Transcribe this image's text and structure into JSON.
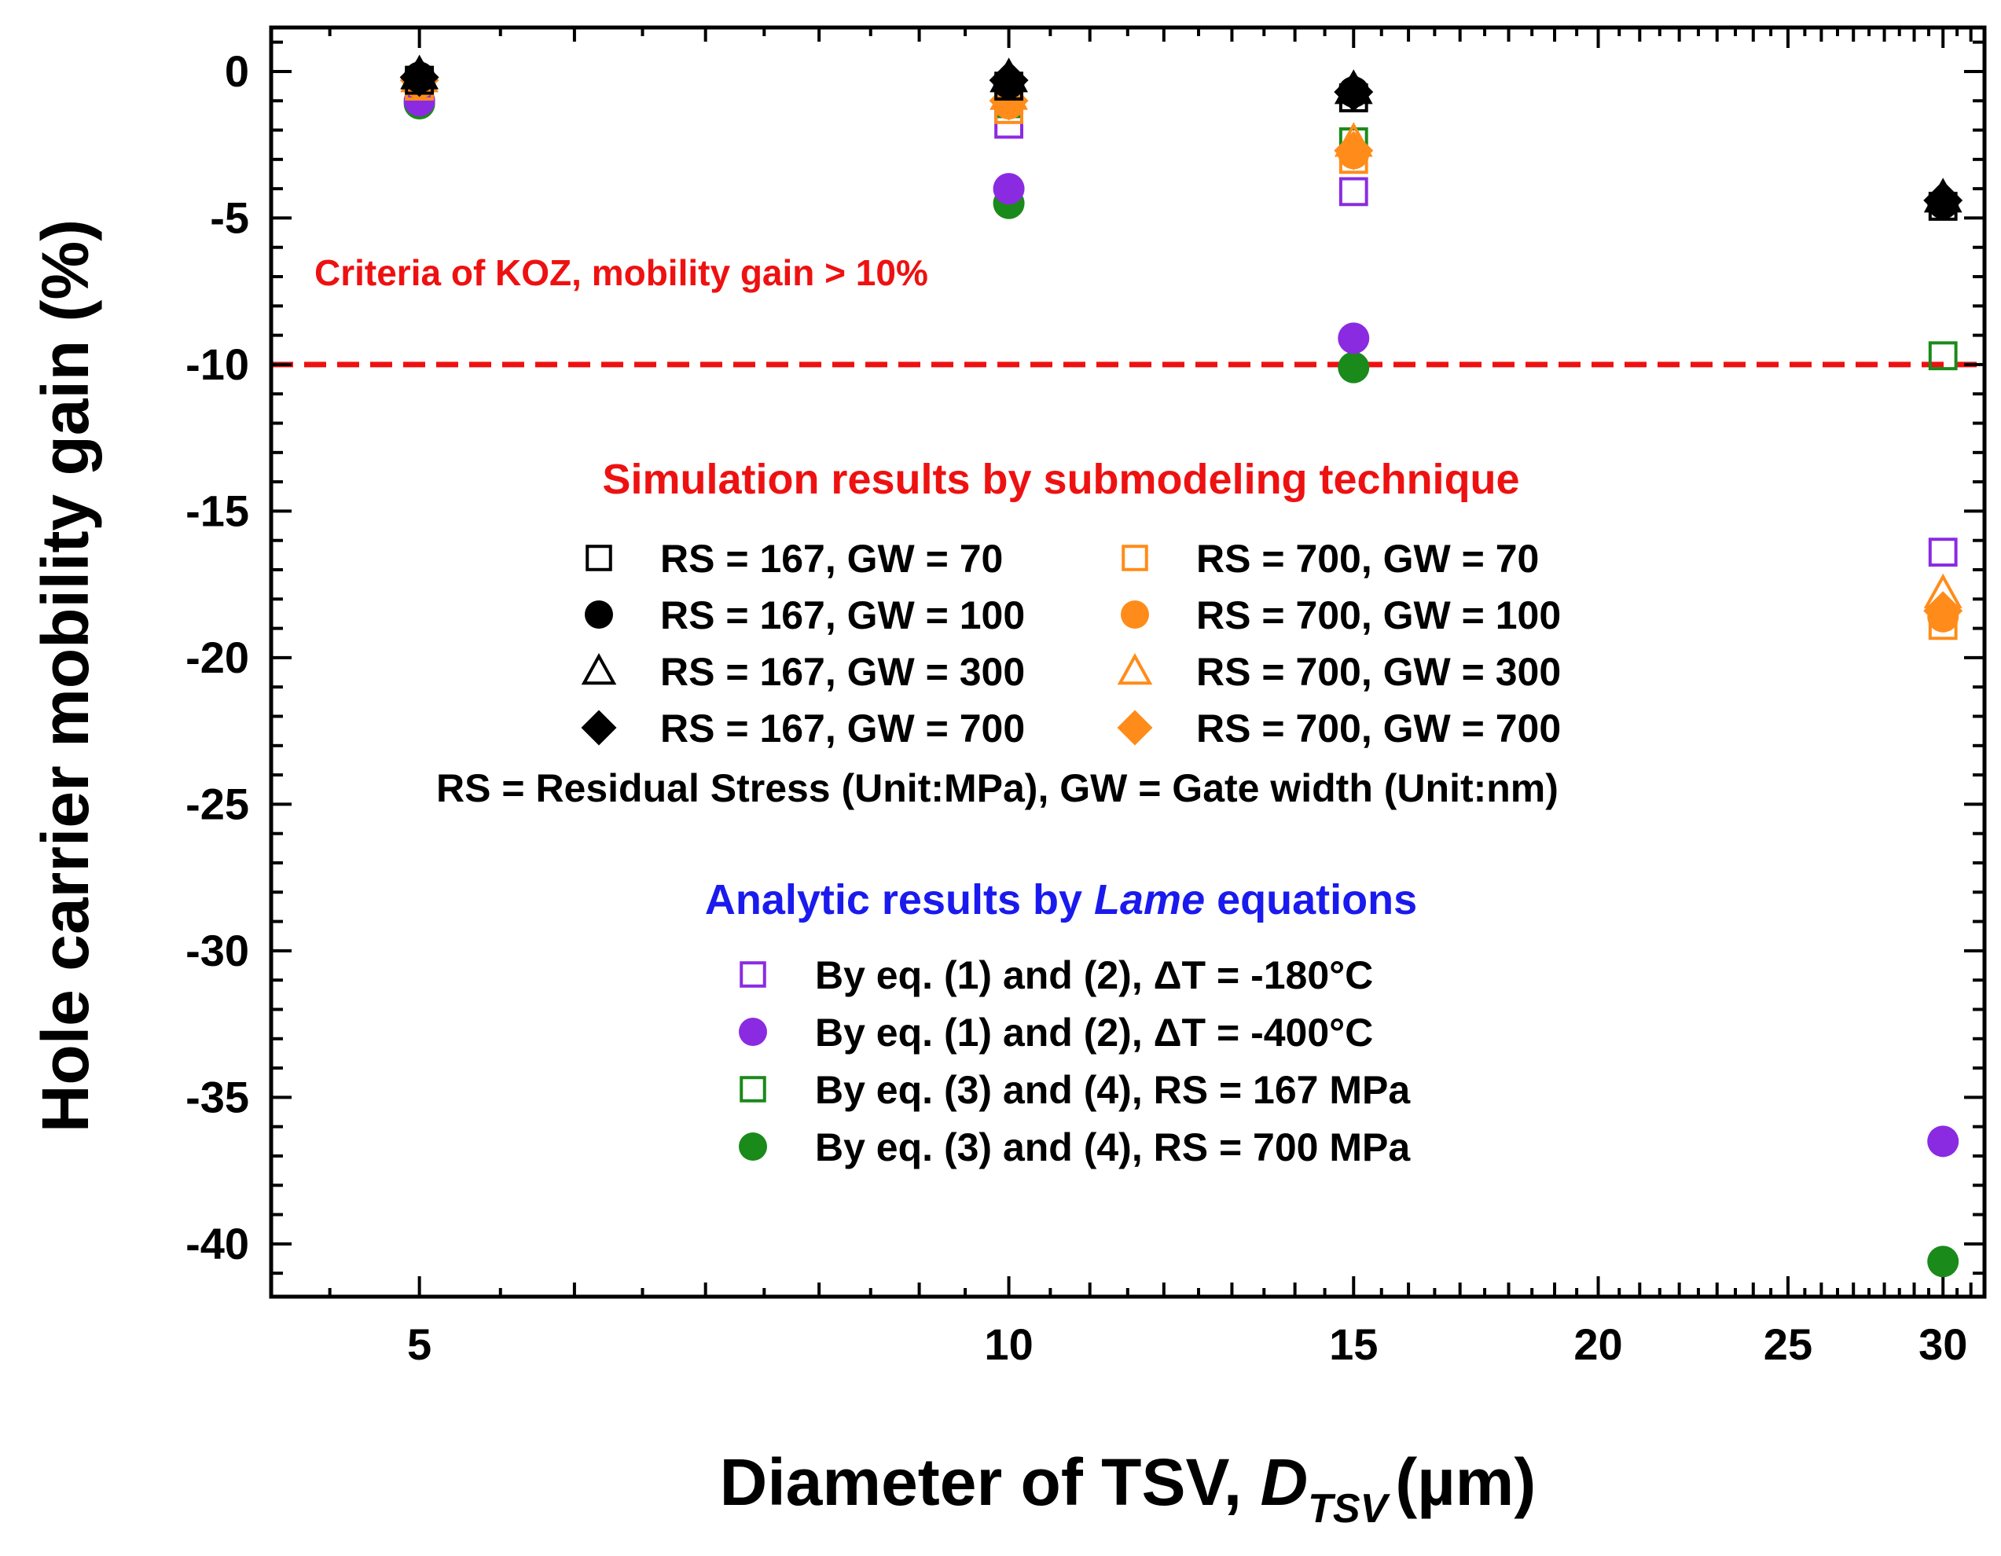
{
  "chart_data": {
    "type": "scatter",
    "xlabel": "Diameter of TSV, ",
    "xlabel_symbol": "D",
    "xlabel_subscript": "TSV",
    "xlabel_unit": "(µm)",
    "ylabel": "Hole carrier mobility gain (%)",
    "x_scale": "log",
    "xlim": [
      4.2,
      31.5
    ],
    "ylim": [
      -41.8,
      1.5
    ],
    "x_ticks": [
      5,
      10,
      15,
      20,
      25,
      30
    ],
    "x_tick_labels": [
      "5",
      "10",
      "15",
      "20",
      "25",
      "30"
    ],
    "y_ticks": [
      0,
      -5,
      -10,
      -15,
      -20,
      -25,
      -30,
      -35,
      -40
    ],
    "y_tick_labels": [
      "0",
      "-5",
      "-10",
      "-15",
      "-20",
      "-25",
      "-30",
      "-35",
      "-40"
    ],
    "threshold": {
      "y": -10,
      "color": "#ee1111",
      "label": "Criteria of KOZ, mobility gain > 10%"
    },
    "legend_sim_title": "Simulation results by submodeling technique",
    "legend_sim_title_color": "#ee1111",
    "legend_note": "RS = Residual Stress (Unit:MPa), GW = Gate width (Unit:nm)",
    "legend_analytic_title_pre": "Analytic results by ",
    "legend_analytic_title_em": "Lame",
    "legend_analytic_title_post": " equations",
    "legend_analytic_title_color": "#1a1aee",
    "series": [
      {
        "name": "RS = 167, GW = 70",
        "marker": "square-open",
        "color": "#000000",
        "x": [
          5,
          10,
          15,
          30
        ],
        "y": [
          -0.3,
          -0.5,
          -0.9,
          -4.6
        ]
      },
      {
        "name": "RS = 167, GW = 100",
        "marker": "circle-filled",
        "color": "#000000",
        "x": [
          5,
          10,
          15,
          30
        ],
        "y": [
          -0.2,
          -0.4,
          -0.7,
          -4.5
        ]
      },
      {
        "name": "RS = 167, GW = 300",
        "marker": "triangle-open",
        "color": "#000000",
        "x": [
          5,
          10,
          15,
          30
        ],
        "y": [
          -0.1,
          -0.2,
          -0.6,
          -4.3
        ]
      },
      {
        "name": "RS = 167, GW = 700",
        "marker": "diamond-filled",
        "color": "#000000",
        "x": [
          5,
          10,
          15,
          30
        ],
        "y": [
          -0.2,
          -0.3,
          -0.7,
          -4.4
        ]
      },
      {
        "name": "RS = 700, GW = 70",
        "marker": "square-open",
        "color": "#ff8c1a",
        "x": [
          5,
          10,
          15,
          30
        ],
        "y": [
          -0.5,
          -1.3,
          -3.0,
          -18.9
        ]
      },
      {
        "name": "RS = 700, GW = 100",
        "marker": "circle-filled",
        "color": "#ff8c1a",
        "x": [
          5,
          10,
          15,
          30
        ],
        "y": [
          -0.4,
          -1.1,
          -2.8,
          -18.6
        ]
      },
      {
        "name": "RS = 700, GW = 300",
        "marker": "triangle-open",
        "color": "#ff8c1a",
        "x": [
          5,
          10,
          15,
          30
        ],
        "y": [
          -0.2,
          -0.8,
          -2.4,
          -17.8
        ]
      },
      {
        "name": "RS = 700, GW = 700",
        "marker": "diamond-filled",
        "color": "#ff8c1a",
        "x": [
          5,
          10,
          15,
          30
        ],
        "y": [
          -0.3,
          -1.0,
          -2.7,
          -18.4
        ]
      },
      {
        "name": "By eq. (1) and (2), ΔT = -180°C",
        "marker": "square-open",
        "color": "#8a2be2",
        "x": [
          5,
          10,
          15,
          30
        ],
        "y": [
          -0.4,
          -1.8,
          -4.1,
          -16.4
        ]
      },
      {
        "name": "By eq. (1) and (2), ΔT = -400°C",
        "marker": "circle-filled",
        "color": "#8a2be2",
        "x": [
          5,
          10,
          15,
          30
        ],
        "y": [
          -1.0,
          -4.0,
          -9.1,
          -36.5
        ]
      },
      {
        "name": "By eq. (3) and (4), RS = 167 MPa",
        "marker": "square-open",
        "color": "#1a8a1a",
        "x": [
          5,
          10,
          15,
          30
        ],
        "y": [
          -0.3,
          -1.1,
          -2.4,
          -9.7
        ]
      },
      {
        "name": "By eq. (3) and (4), RS = 700 MPa",
        "marker": "circle-filled",
        "color": "#1a8a1a",
        "x": [
          5,
          10,
          15,
          30
        ],
        "y": [
          -1.1,
          -4.5,
          -10.1,
          -40.6
        ]
      }
    ],
    "draw_order": [
      10,
      11,
      9,
      8,
      4,
      5,
      6,
      7,
      0,
      1,
      2,
      3
    ]
  }
}
